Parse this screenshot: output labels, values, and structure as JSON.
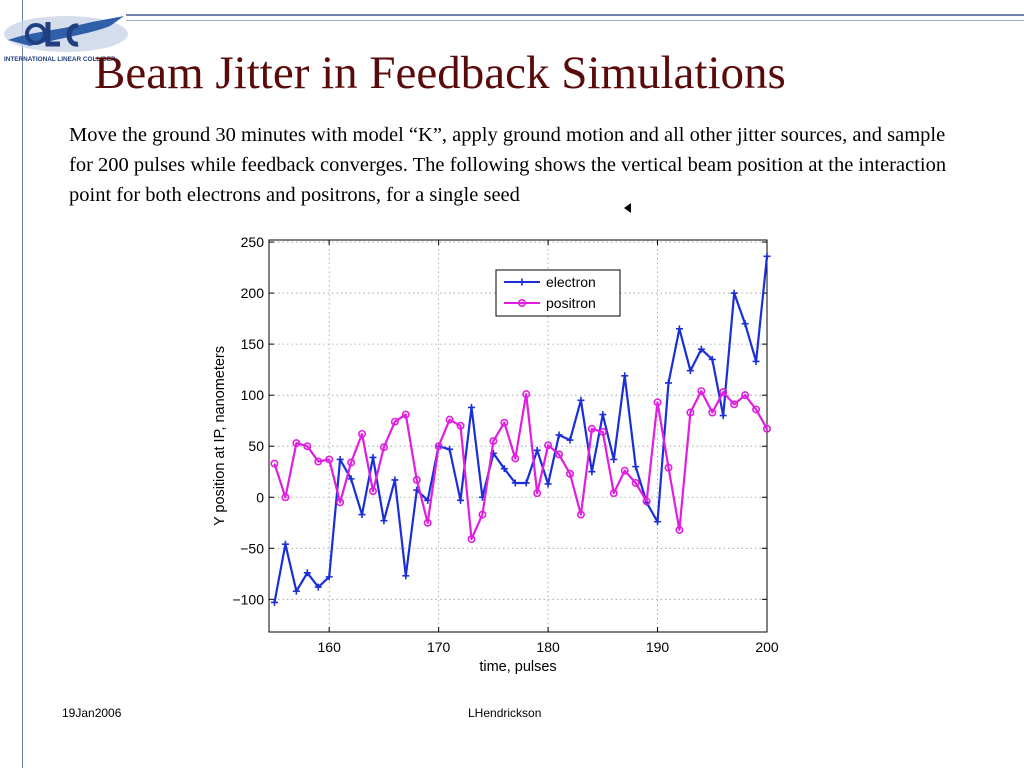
{
  "slide": {
    "title": "Beam Jitter in Feedback Simulations",
    "body": "Move the ground 30 minutes with model “K”, apply ground motion and all other jitter sources, and sample for 200 pulses while feedback converges. The following shows the vertical beam position at the interaction point for both electrons and positrons, for a single seed",
    "logo_text": "INTERNATIONAL LINEAR COLLIDER",
    "footer_left": "19Jan2006",
    "footer_center": "LHendrickson"
  },
  "chart_data": {
    "type": "line",
    "title": "",
    "xlabel": "time, pulses",
    "ylabel": "Y position at IP, nanometers",
    "xlim": [
      154.5,
      200
    ],
    "ylim": [
      -132,
      252
    ],
    "xticks": [
      160,
      170,
      180,
      190,
      200
    ],
    "yticks": [
      -100,
      -50,
      0,
      50,
      100,
      150,
      200,
      250
    ],
    "grid": true,
    "legend": "top-center",
    "x": [
      155,
      156,
      157,
      158,
      159,
      160,
      161,
      162,
      163,
      164,
      165,
      166,
      167,
      168,
      169,
      170,
      171,
      172,
      173,
      174,
      175,
      176,
      177,
      178,
      179,
      180,
      181,
      182,
      183,
      184,
      185,
      186,
      187,
      188,
      189,
      190,
      191,
      192,
      193,
      194,
      195,
      196,
      197,
      198,
      199,
      200
    ],
    "series": [
      {
        "name": "electron",
        "color": "#1a2fd6",
        "marker": "plus",
        "values": [
          -103,
          -46,
          -92,
          -74,
          -88,
          -78,
          37,
          18,
          -17,
          39,
          -23,
          17,
          -77,
          7,
          -3,
          50,
          47,
          -3,
          88,
          0,
          43,
          28,
          14,
          14,
          46,
          13,
          61,
          56,
          95,
          25,
          81,
          37,
          119,
          30,
          -5,
          -24,
          112,
          165,
          124,
          145,
          135,
          80,
          200,
          170,
          133,
          236
        ]
      },
      {
        "name": "positron",
        "color": "#e01ee0",
        "marker": "circle",
        "values": [
          33,
          0,
          53,
          50,
          35,
          37,
          -5,
          34,
          62,
          6,
          49,
          74,
          81,
          17,
          -25,
          50,
          76,
          70,
          -41,
          -17,
          55,
          73,
          38,
          101,
          4,
          51,
          42,
          23,
          -17,
          67,
          64,
          4,
          26,
          14,
          -4,
          93,
          29,
          -32,
          83,
          104,
          83,
          103,
          91,
          100,
          86,
          67
        ]
      }
    ]
  }
}
